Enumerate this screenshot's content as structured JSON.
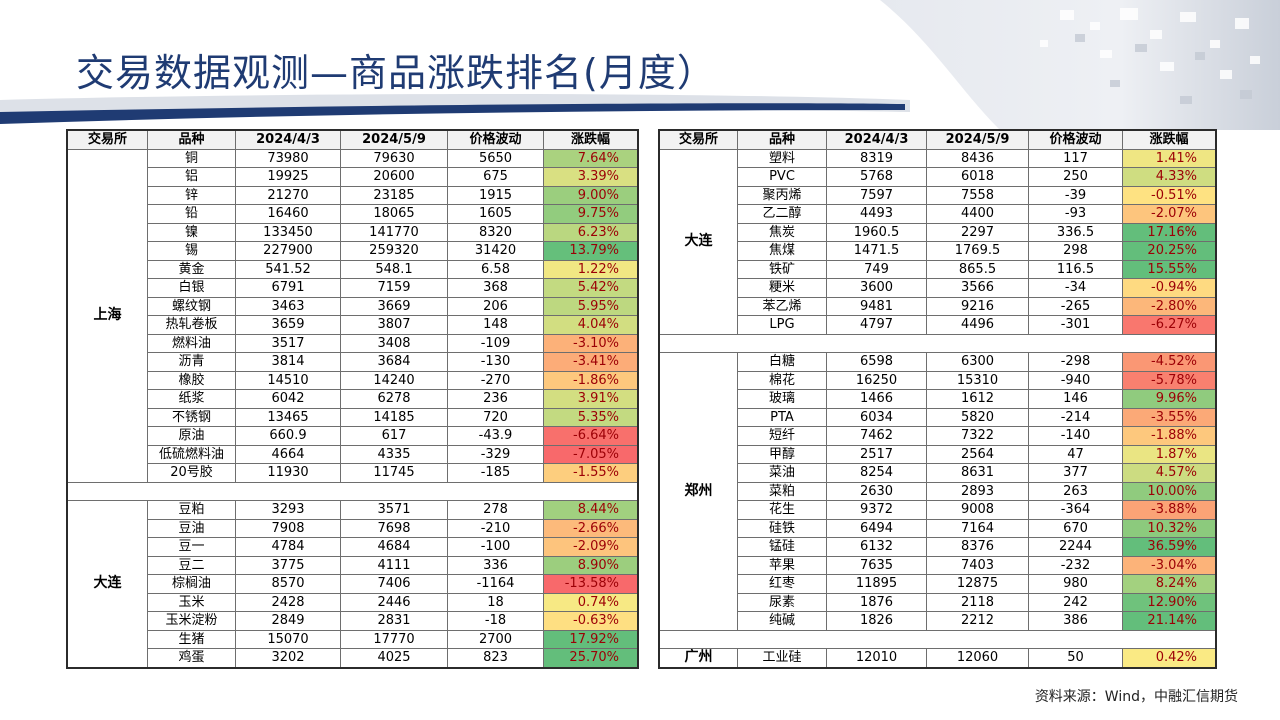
{
  "page": {
    "title": "交易数据观测—商品涨跌排名(月度）",
    "source": "资料来源：Wind，中融汇信期货"
  },
  "headers": [
    "交易所",
    "品种",
    "2024/4/3",
    "2024/5/9",
    "价格波动",
    "涨跌幅"
  ],
  "colors": {
    "title": "#1f3b73",
    "green": "#63be7b",
    "yellow": "#ffeb84",
    "red": "#f8696b"
  },
  "left": {
    "groups": [
      {
        "exchange": "上海",
        "rows": [
          {
            "name": "铜",
            "d1": "73980",
            "d2": "79630",
            "chg": "5650",
            "pct": "7.64%",
            "p": 7.64
          },
          {
            "name": "铝",
            "d1": "19925",
            "d2": "20600",
            "chg": "675",
            "pct": "3.39%",
            "p": 3.39
          },
          {
            "name": "锌",
            "d1": "21270",
            "d2": "23185",
            "chg": "1915",
            "pct": "9.00%",
            "p": 9.0
          },
          {
            "name": "铅",
            "d1": "16460",
            "d2": "18065",
            "chg": "1605",
            "pct": "9.75%",
            "p": 9.75
          },
          {
            "name": "镍",
            "d1": "133450",
            "d2": "141770",
            "chg": "8320",
            "pct": "6.23%",
            "p": 6.23
          },
          {
            "name": "锡",
            "d1": "227900",
            "d2": "259320",
            "chg": "31420",
            "pct": "13.79%",
            "p": 13.79
          },
          {
            "name": "黄金",
            "d1": "541.52",
            "d2": "548.1",
            "chg": "6.58",
            "pct": "1.22%",
            "p": 1.22
          },
          {
            "name": "白银",
            "d1": "6791",
            "d2": "7159",
            "chg": "368",
            "pct": "5.42%",
            "p": 5.42
          },
          {
            "name": "螺纹钢",
            "d1": "3463",
            "d2": "3669",
            "chg": "206",
            "pct": "5.95%",
            "p": 5.95
          },
          {
            "name": "热轧卷板",
            "d1": "3659",
            "d2": "3807",
            "chg": "148",
            "pct": "4.04%",
            "p": 4.04
          },
          {
            "name": "燃料油",
            "d1": "3517",
            "d2": "3408",
            "chg": "-109",
            "pct": "-3.10%",
            "p": -3.1
          },
          {
            "name": "沥青",
            "d1": "3814",
            "d2": "3684",
            "chg": "-130",
            "pct": "-3.41%",
            "p": -3.41
          },
          {
            "name": "橡胶",
            "d1": "14510",
            "d2": "14240",
            "chg": "-270",
            "pct": "-1.86%",
            "p": -1.86
          },
          {
            "name": "纸浆",
            "d1": "6042",
            "d2": "6278",
            "chg": "236",
            "pct": "3.91%",
            "p": 3.91
          },
          {
            "name": "不锈钢",
            "d1": "13465",
            "d2": "14185",
            "chg": "720",
            "pct": "5.35%",
            "p": 5.35
          },
          {
            "name": "原油",
            "d1": "660.9",
            "d2": "617",
            "chg": "-43.9",
            "pct": "-6.64%",
            "p": -6.64
          },
          {
            "name": "低硫燃料油",
            "d1": "4664",
            "d2": "4335",
            "chg": "-329",
            "pct": "-7.05%",
            "p": -7.05
          },
          {
            "name": "20号胶",
            "d1": "11930",
            "d2": "11745",
            "chg": "-185",
            "pct": "-1.55%",
            "p": -1.55
          }
        ]
      },
      {
        "blank": true
      },
      {
        "exchange": "大连",
        "rows": [
          {
            "name": "豆粕",
            "d1": "3293",
            "d2": "3571",
            "chg": "278",
            "pct": "8.44%",
            "p": 8.44
          },
          {
            "name": "豆油",
            "d1": "7908",
            "d2": "7698",
            "chg": "-210",
            "pct": "-2.66%",
            "p": -2.66
          },
          {
            "name": "豆一",
            "d1": "4784",
            "d2": "4684",
            "chg": "-100",
            "pct": "-2.09%",
            "p": -2.09
          },
          {
            "name": "豆二",
            "d1": "3775",
            "d2": "4111",
            "chg": "336",
            "pct": "8.90%",
            "p": 8.9
          },
          {
            "name": "棕榈油",
            "d1": "8570",
            "d2": "7406",
            "chg": "-1164",
            "pct": "-13.58%",
            "p": -13.58
          },
          {
            "name": "玉米",
            "d1": "2428",
            "d2": "2446",
            "chg": "18",
            "pct": "0.74%",
            "p": 0.74
          },
          {
            "name": "玉米淀粉",
            "d1": "2849",
            "d2": "2831",
            "chg": "-18",
            "pct": "-0.63%",
            "p": -0.63
          },
          {
            "name": "生猪",
            "d1": "15070",
            "d2": "17770",
            "chg": "2700",
            "pct": "17.92%",
            "p": 17.92
          },
          {
            "name": "鸡蛋",
            "d1": "3202",
            "d2": "4025",
            "chg": "823",
            "pct": "25.70%",
            "p": 25.7
          }
        ]
      }
    ]
  },
  "right": {
    "groups": [
      {
        "exchange": "大连",
        "rows": [
          {
            "name": "塑料",
            "d1": "8319",
            "d2": "8436",
            "chg": "117",
            "pct": "1.41%",
            "p": 1.41
          },
          {
            "name": "PVC",
            "d1": "5768",
            "d2": "6018",
            "chg": "250",
            "pct": "4.33%",
            "p": 4.33
          },
          {
            "name": "聚丙烯",
            "d1": "7597",
            "d2": "7558",
            "chg": "-39",
            "pct": "-0.51%",
            "p": -0.51
          },
          {
            "name": "乙二醇",
            "d1": "4493",
            "d2": "4400",
            "chg": "-93",
            "pct": "-2.07%",
            "p": -2.07
          },
          {
            "name": "焦炭",
            "d1": "1960.5",
            "d2": "2297",
            "chg": "336.5",
            "pct": "17.16%",
            "p": 17.16
          },
          {
            "name": "焦煤",
            "d1": "1471.5",
            "d2": "1769.5",
            "chg": "298",
            "pct": "20.25%",
            "p": 20.25
          },
          {
            "name": "铁矿",
            "d1": "749",
            "d2": "865.5",
            "chg": "116.5",
            "pct": "15.55%",
            "p": 15.55
          },
          {
            "name": "粳米",
            "d1": "3600",
            "d2": "3566",
            "chg": "-34",
            "pct": "-0.94%",
            "p": -0.94
          },
          {
            "name": "苯乙烯",
            "d1": "9481",
            "d2": "9216",
            "chg": "-265",
            "pct": "-2.80%",
            "p": -2.8
          },
          {
            "name": "LPG",
            "d1": "4797",
            "d2": "4496",
            "chg": "-301",
            "pct": "-6.27%",
            "p": -6.27
          }
        ]
      },
      {
        "blank": true
      },
      {
        "exchange": "郑州",
        "rows": [
          {
            "name": "白糖",
            "d1": "6598",
            "d2": "6300",
            "chg": "-298",
            "pct": "-4.52%",
            "p": -4.52
          },
          {
            "name": "棉花",
            "d1": "16250",
            "d2": "15310",
            "chg": "-940",
            "pct": "-5.78%",
            "p": -5.78
          },
          {
            "name": "玻璃",
            "d1": "1466",
            "d2": "1612",
            "chg": "146",
            "pct": "9.96%",
            "p": 9.96
          },
          {
            "name": "PTA",
            "d1": "6034",
            "d2": "5820",
            "chg": "-214",
            "pct": "-3.55%",
            "p": -3.55
          },
          {
            "name": "短纤",
            "d1": "7462",
            "d2": "7322",
            "chg": "-140",
            "pct": "-1.88%",
            "p": -1.88
          },
          {
            "name": "甲醇",
            "d1": "2517",
            "d2": "2564",
            "chg": "47",
            "pct": "1.87%",
            "p": 1.87
          },
          {
            "name": "菜油",
            "d1": "8254",
            "d2": "8631",
            "chg": "377",
            "pct": "4.57%",
            "p": 4.57
          },
          {
            "name": "菜粕",
            "d1": "2630",
            "d2": "2893",
            "chg": "263",
            "pct": "10.00%",
            "p": 10.0
          },
          {
            "name": "花生",
            "d1": "9372",
            "d2": "9008",
            "chg": "-364",
            "pct": "-3.88%",
            "p": -3.88
          },
          {
            "name": "硅铁",
            "d1": "6494",
            "d2": "7164",
            "chg": "670",
            "pct": "10.32%",
            "p": 10.32
          },
          {
            "name": "锰硅",
            "d1": "6132",
            "d2": "8376",
            "chg": "2244",
            "pct": "36.59%",
            "p": 36.59
          },
          {
            "name": "苹果",
            "d1": "7635",
            "d2": "7403",
            "chg": "-232",
            "pct": "-3.04%",
            "p": -3.04
          },
          {
            "name": "红枣",
            "d1": "11895",
            "d2": "12875",
            "chg": "980",
            "pct": "8.24%",
            "p": 8.24
          },
          {
            "name": "尿素",
            "d1": "1876",
            "d2": "2118",
            "chg": "242",
            "pct": "12.90%",
            "p": 12.9
          },
          {
            "name": "纯碱",
            "d1": "1826",
            "d2": "2212",
            "chg": "386",
            "pct": "21.14%",
            "p": 21.14
          }
        ]
      },
      {
        "blank": true
      },
      {
        "exchange": "广州",
        "rows": [
          {
            "name": "工业硅",
            "d1": "12010",
            "d2": "12060",
            "chg": "50",
            "pct": "0.42%",
            "p": 0.42
          }
        ]
      }
    ]
  }
}
